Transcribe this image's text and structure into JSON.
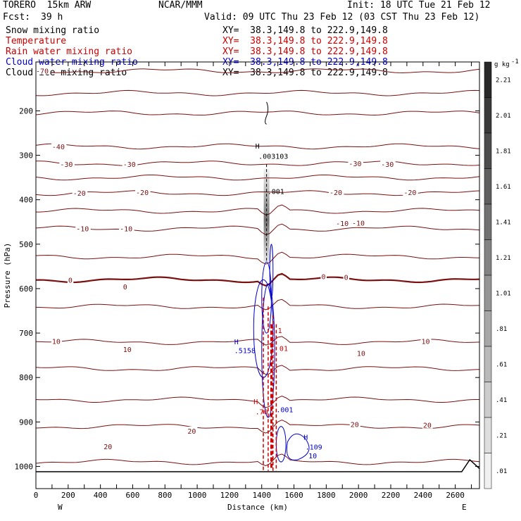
{
  "header": {
    "model": "TORERO  15km ARW",
    "center": "NCAR/MMM",
    "init": "Init: 18 UTC Tue 21 Feb 12",
    "fcst_label": "Fcst:",
    "fcst_value": "39 h",
    "valid": "Valid: 09 UTC Thu 23 Feb 12 (03 CST Thu 23 Feb 12)"
  },
  "fields": [
    {
      "name": "Snow mixing ratio",
      "xy": "XY=  38.3,149.8 to 222.9,149.8",
      "color": "#000000"
    },
    {
      "name": "Temperature",
      "xy": "XY=  38.3,149.8 to 222.9,149.8",
      "color": "#cc0000"
    },
    {
      "name": "Rain water mixing ratio",
      "xy": "XY=  38.3,149.8 to 222.9,149.8",
      "color": "#cc0000"
    },
    {
      "name": "Cloud water mixing ratio",
      "xy": "XY=  38.3,149.8 to 222.9,149.8",
      "color": "#0000cc"
    },
    {
      "name": "Cloud ice mixing ratio",
      "xy": "XY=  38.3,149.8 to 222.9,149.8",
      "color": "#000000"
    }
  ],
  "chart_data": {
    "type": "contour",
    "xlabel": "Distance (km)",
    "ylabel": "Pressure (hPa)",
    "x_end_labels": {
      "left": "W",
      "right": "E"
    },
    "xlim": [
      0,
      2750
    ],
    "ylim": [
      1050,
      90
    ],
    "x_ticks": [
      0,
      100,
      200,
      300,
      400,
      500,
      600,
      700,
      800,
      900,
      1000,
      1100,
      1200,
      1300,
      1400,
      1500,
      1600,
      1700,
      1800,
      1900,
      2000,
      2100,
      2200,
      2300,
      2400,
      2500,
      2600,
      2700
    ],
    "x_tick_labels": [
      "0",
      "200",
      "400",
      "600",
      "800",
      "1000",
      "1200",
      "1400",
      "1600",
      "1800",
      "2000",
      "2200",
      "2400",
      "2600"
    ],
    "y_ticks": [
      200,
      300,
      400,
      500,
      600,
      700,
      800,
      900,
      1000
    ],
    "y_tick_labels": [
      "200",
      "300",
      "400",
      "500",
      "600",
      "700",
      "800",
      "900",
      "1000"
    ],
    "temperature_contours": [
      {
        "level": -70,
        "p": 110,
        "label": "-70"
      },
      {
        "level": -60,
        "p": 160
      },
      {
        "level": -50,
        "p": 205
      },
      {
        "level": -40,
        "p": 280,
        "label": "-40"
      },
      {
        "level": -30,
        "p": 318,
        "label": "-30"
      },
      {
        "level": -25,
        "p": 350
      },
      {
        "level": -20,
        "p": 385,
        "label": "-20"
      },
      {
        "level": -15,
        "p": 425
      },
      {
        "level": -10,
        "p": 465,
        "label": "-10"
      },
      {
        "level": -5,
        "p": 528
      },
      {
        "level": 0,
        "p": 580,
        "label": "0"
      },
      {
        "level": 5,
        "p": 640
      },
      {
        "level": 10,
        "p": 720,
        "label": "10"
      },
      {
        "level": 12,
        "p": 780
      },
      {
        "level": 15,
        "p": 850
      },
      {
        "level": 20,
        "p": 910,
        "label": "20"
      },
      {
        "level": 25,
        "p": 990
      }
    ],
    "contour_labels": [
      {
        "text": "-70",
        "x": 0,
        "p": 110
      },
      {
        "text": "-40",
        "x": 100,
        "p": 280
      },
      {
        "text": "-30",
        "x": 150,
        "p": 320
      },
      {
        "text": "-30",
        "x": 540,
        "p": 320
      },
      {
        "text": "-30",
        "x": 1940,
        "p": 318
      },
      {
        "text": "-30",
        "x": 2140,
        "p": 320
      },
      {
        "text": "-20",
        "x": 230,
        "p": 385
      },
      {
        "text": "-20",
        "x": 620,
        "p": 383
      },
      {
        "text": "-20",
        "x": 1820,
        "p": 383
      },
      {
        "text": "-20",
        "x": 2280,
        "p": 383
      },
      {
        "text": "-10",
        "x": 250,
        "p": 465
      },
      {
        "text": "-10",
        "x": 520,
        "p": 465
      },
      {
        "text": "-10",
        "x": 1860,
        "p": 453
      },
      {
        "text": "-10",
        "x": 1960,
        "p": 452
      },
      {
        "text": "0",
        "x": 200,
        "p": 580
      },
      {
        "text": "0",
        "x": 540,
        "p": 595
      },
      {
        "text": "0",
        "x": 1770,
        "p": 572
      },
      {
        "text": "0",
        "x": 1910,
        "p": 574
      },
      {
        "text": "10",
        "x": 100,
        "p": 718
      },
      {
        "text": "10",
        "x": 540,
        "p": 736
      },
      {
        "text": "10",
        "x": 1990,
        "p": 745
      },
      {
        "text": "10",
        "x": 2390,
        "p": 718
      },
      {
        "text": "20",
        "x": 420,
        "p": 955
      },
      {
        "text": "20",
        "x": 940,
        "p": 920
      },
      {
        "text": "20",
        "x": 1950,
        "p": 905
      },
      {
        "text": "20",
        "x": 2400,
        "p": 907
      }
    ],
    "annotations": [
      {
        "text": "H",
        "x": 1360,
        "p": 285,
        "color": "#000000"
      },
      {
        "text": ".003103",
        "x": 1380,
        "p": 308,
        "color": "#000000"
      },
      {
        "text": ".001",
        "x": 1435,
        "p": 387,
        "color": "#000000"
      },
      {
        "text": "H",
        "x": 1230,
        "p": 725,
        "color": "#0000cc"
      },
      {
        "text": ".5158",
        "x": 1230,
        "p": 745,
        "color": "#0000cc"
      },
      {
        "text": "1",
        "x": 1500,
        "p": 700,
        "color": "#cc0000"
      },
      {
        "text": "01",
        "x": 1510,
        "p": 740,
        "color": "#cc0000"
      },
      {
        "text": "H",
        "x": 1350,
        "p": 860,
        "color": "#cc0000"
      },
      {
        "text": ".70",
        "x": 1360,
        "p": 883,
        "color": "#cc0000"
      },
      {
        "text": ".001",
        "x": 1490,
        "p": 878,
        "color": "#0000cc"
      },
      {
        "text": "H",
        "x": 1660,
        "p": 940,
        "color": "#0000cc"
      },
      {
        "text": ".109",
        "x": 1670,
        "p": 962,
        "color": "#0000cc"
      },
      {
        "text": "10",
        "x": 1690,
        "p": 982,
        "color": "#0000cc"
      }
    ],
    "colorbar": {
      "unit": "g kg",
      "unit_exponent": "-1",
      "labels": [
        "2.21",
        "2.01",
        "1.81",
        "1.61",
        "1.41",
        "1.21",
        "1.01",
        ".81",
        ".61",
        ".41",
        ".21",
        ".01"
      ]
    },
    "snow_column": {
      "x": 1430,
      "p_top": 330,
      "p_bottom": 540
    },
    "ice_wisp": {
      "x": 1430,
      "p_top": 180,
      "p_bottom": 230
    },
    "terrain": {
      "p": 1012,
      "bump_x": 2690,
      "bump_p": 985
    }
  }
}
